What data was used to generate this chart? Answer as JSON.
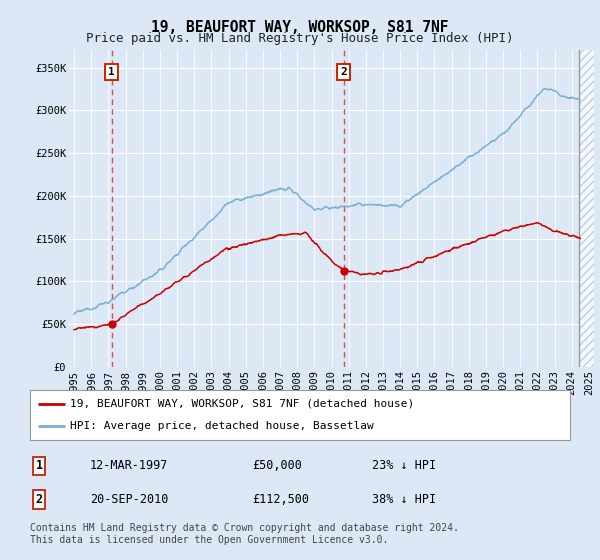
{
  "title": "19, BEAUFORT WAY, WORKSOP, S81 7NF",
  "subtitle": "Price paid vs. HM Land Registry's House Price Index (HPI)",
  "ylabel_ticks": [
    "£0",
    "£50K",
    "£100K",
    "£150K",
    "£200K",
    "£250K",
    "£300K",
    "£350K"
  ],
  "ylim": [
    0,
    370000
  ],
  "xlim_start": 1994.7,
  "xlim_end": 2025.3,
  "purchase1_date": 1997.19,
  "purchase1_price": 50000,
  "purchase2_date": 2010.72,
  "purchase2_price": 112500,
  "red_line_color": "#cc0000",
  "blue_line_color": "#7ab0d4",
  "background_color": "#dce8f5",
  "plot_bg_color": "#dce8f5",
  "grid_color": "#ffffff",
  "dashed_line_color": "#dd3333",
  "hatch_color": "#bbccdd",
  "legend_entry1": "19, BEAUFORT WAY, WORKSOP, S81 7NF (detached house)",
  "legend_entry2": "HPI: Average price, detached house, Bassetlaw",
  "table_row1": [
    "1",
    "12-MAR-1997",
    "£50,000",
    "23% ↓ HPI"
  ],
  "table_row2": [
    "2",
    "20-SEP-2010",
    "£112,500",
    "38% ↓ HPI"
  ],
  "footnote": "Contains HM Land Registry data © Crown copyright and database right 2024.\nThis data is licensed under the Open Government Licence v3.0.",
  "title_fontsize": 10.5,
  "subtitle_fontsize": 9,
  "tick_fontsize": 7.5,
  "legend_fontsize": 8,
  "table_fontsize": 8.5,
  "footnote_fontsize": 7,
  "hatch_start": 2024.4,
  "hatch_end": 2025.3
}
